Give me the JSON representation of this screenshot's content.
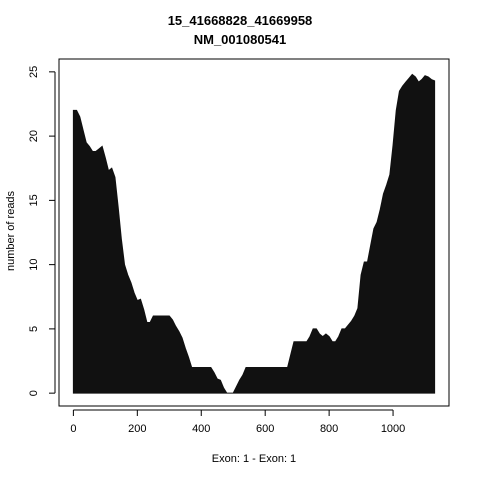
{
  "chart_data": {
    "type": "area",
    "title": "15_41668828_41669958",
    "subtitle": "NM_001080541",
    "xlabel": "Exon: 1 - Exon: 1",
    "ylabel": "number of reads",
    "xlim": [
      -45,
      1175
    ],
    "ylim": [
      -1,
      26
    ],
    "x_ticks": [
      0,
      200,
      400,
      600,
      800,
      1000
    ],
    "y_ticks": [
      0,
      5,
      10,
      15,
      20,
      25
    ],
    "grid": false,
    "fill_color": "#111111",
    "series": [
      {
        "x": [
          0,
          10,
          20,
          30,
          40,
          50,
          60,
          70,
          80,
          90,
          100,
          110,
          120,
          130,
          140,
          150,
          160,
          170,
          180,
          190,
          200,
          210,
          220,
          230,
          240,
          250,
          260,
          270,
          280,
          290,
          300,
          310,
          320,
          330,
          340,
          350,
          360,
          370,
          380,
          390,
          400,
          410,
          420,
          430,
          440,
          450,
          460,
          470,
          480,
          490,
          500,
          510,
          520,
          530,
          540,
          550,
          560,
          570,
          580,
          590,
          600,
          610,
          620,
          630,
          640,
          650,
          660,
          670,
          680,
          690,
          700,
          710,
          720,
          730,
          740,
          750,
          760,
          770,
          780,
          790,
          800,
          810,
          820,
          830,
          840,
          850,
          860,
          870,
          880,
          890,
          900,
          910,
          920,
          930,
          940,
          950,
          960,
          970,
          980,
          990,
          1000,
          1010,
          1020,
          1030,
          1040,
          1050,
          1060,
          1070,
          1080,
          1090,
          1100,
          1110,
          1120,
          1130
        ],
        "values": [
          22,
          22,
          21.5,
          20.5,
          19.5,
          19.2,
          18.8,
          18.8,
          19.0,
          19.2,
          18.3,
          17.3,
          17.5,
          16.8,
          14.5,
          12,
          10,
          9.2,
          8.6,
          7.8,
          7.2,
          7.3,
          6.5,
          5.5,
          5.5,
          6,
          6,
          6,
          6,
          6,
          6,
          5.7,
          5.2,
          4.8,
          4.3,
          3.5,
          2.8,
          2,
          2,
          2,
          2,
          2,
          2,
          2,
          1.6,
          1.1,
          1.0,
          0.4,
          0,
          0,
          0,
          0.5,
          1.0,
          1.4,
          2,
          2,
          2,
          2,
          2,
          2,
          2,
          2,
          2,
          2,
          2,
          2,
          2,
          2,
          3.0,
          4,
          4,
          4,
          4,
          4,
          4.4,
          5,
          5,
          4.6,
          4.4,
          4.6,
          4.4,
          4.0,
          4.0,
          4.4,
          5,
          5,
          5.3,
          5.6,
          6.0,
          6.6,
          9.2,
          10.2,
          10.2,
          11.5,
          12.8,
          13.3,
          14.3,
          15.5,
          16.2,
          17.0,
          19.3,
          22.0,
          23.5,
          23.9,
          24.2,
          24.5,
          24.8,
          24.6,
          24.2,
          24.4,
          24.7,
          24.6,
          24.4,
          24.3
        ]
      }
    ]
  }
}
